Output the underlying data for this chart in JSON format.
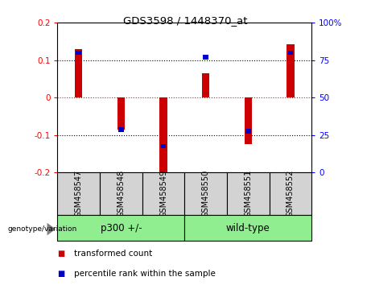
{
  "title": "GDS3598 / 1448370_at",
  "samples": [
    "GSM458547",
    "GSM458548",
    "GSM458549",
    "GSM458550",
    "GSM458551",
    "GSM458552"
  ],
  "red_values": [
    0.13,
    -0.085,
    -0.21,
    0.065,
    -0.125,
    0.142
  ],
  "blue_positions": [
    0.12,
    -0.085,
    -0.13,
    0.108,
    -0.09,
    0.12
  ],
  "ylim": [
    -0.2,
    0.2
  ],
  "group_colors": [
    "#90EE90",
    "#90EE90"
  ],
  "bar_width": 0.5,
  "red_color": "#CC0000",
  "blue_color": "#0000CC",
  "left_yticks": [
    -0.2,
    -0.1,
    0,
    0.1,
    0.2
  ],
  "sample_bg_color": "#D3D3D3",
  "green_color": "#90EE90"
}
